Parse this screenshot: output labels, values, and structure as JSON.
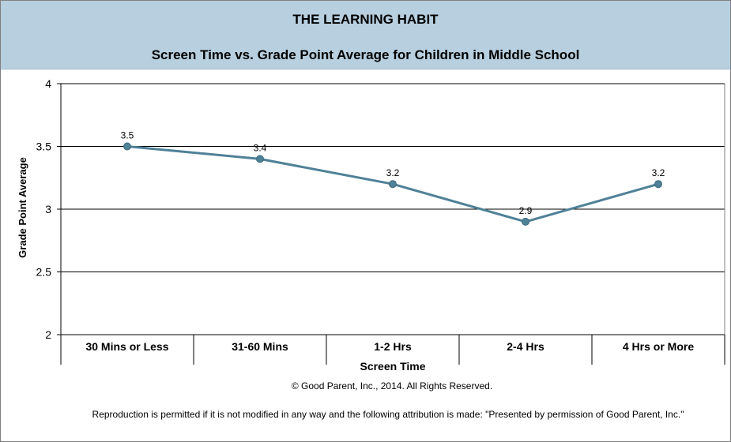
{
  "header": {
    "title": "THE LEARNING HABIT",
    "subtitle": "Screen Time vs. Grade Point Average for Children in Middle School"
  },
  "chart_data": {
    "type": "line",
    "title": "THE LEARNING HABIT",
    "subtitle": "Screen Time vs. Grade Point Average for Children in Middle School",
    "xlabel": "Screen Time",
    "ylabel": "Grade Point Average",
    "categories": [
      "30 Mins or Less",
      "31-60 Mins",
      "1-2 Hrs",
      "2-4 Hrs",
      "4 Hrs or More"
    ],
    "values": [
      3.5,
      3.4,
      3.2,
      2.9,
      3.2
    ],
    "data_labels": [
      "3.5",
      "3.4",
      "3.2",
      "2.9",
      "3.2"
    ],
    "ylim": [
      2,
      4
    ],
    "yticks": [
      2,
      2.5,
      3,
      3.5,
      4
    ],
    "ytick_labels": [
      "2",
      "2.5",
      "3",
      "3.5",
      "4"
    ],
    "grid": true,
    "legend": "none",
    "line_color": "#4f8197"
  },
  "footer": {
    "copyright": "© Good Parent, Inc., 2014. All Rights Reserved.",
    "note": "Reproduction is permitted if it is not modified in any way and the following attribution is made: \"Presented by permission of Good Parent, Inc.\""
  }
}
